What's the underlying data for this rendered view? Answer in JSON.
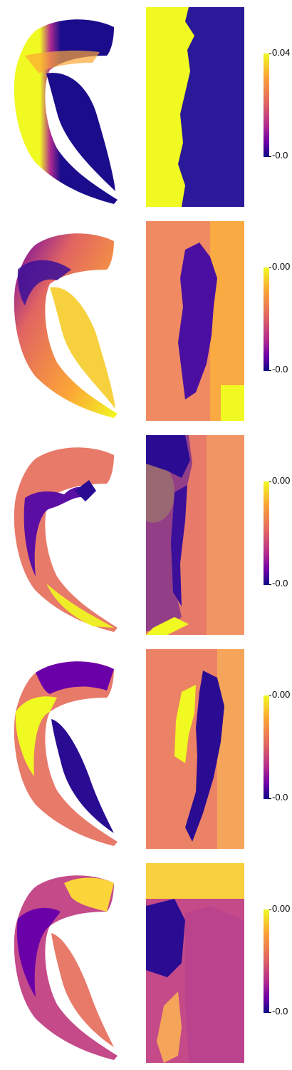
{
  "panels": [
    {
      "colorbar": {
        "max_label": "0.04",
        "min_label": "-0.0"
      }
    },
    {
      "colorbar": {
        "max_label": "0.00",
        "min_label": "-0.0"
      }
    },
    {
      "colorbar": {
        "max_label": "0.00",
        "min_label": "-0.0"
      }
    },
    {
      "colorbar": {
        "max_label": "0.00",
        "min_label": "-0.0"
      }
    },
    {
      "colorbar": {
        "max_label": "0.00",
        "min_label": "-0.0"
      }
    }
  ],
  "colormap": {
    "name": "plasma",
    "stops": [
      "#0d0887",
      "#6a00a8",
      "#b12a90",
      "#e16462",
      "#fca636",
      "#f0f921"
    ]
  }
}
